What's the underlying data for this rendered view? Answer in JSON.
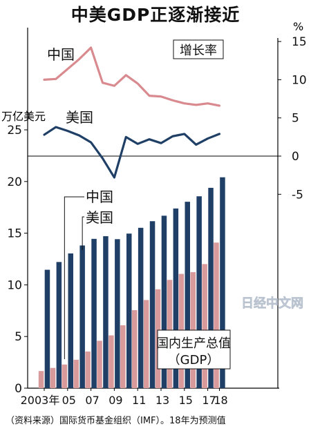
{
  "title": "中美GDP正逐渐接近",
  "source": "（资料来源）国际货币基金组织（IMF）。18年为预测值",
  "watermark": "日经中文网",
  "chart_data": [
    {
      "type": "line",
      "label": "增长率",
      "unit": "%",
      "x": [
        2003,
        2004,
        2005,
        2006,
        2007,
        2008,
        2009,
        2010,
        2011,
        2012,
        2013,
        2014,
        2015,
        2016,
        2017,
        2018
      ],
      "series": [
        {
          "name": "中国",
          "color": "#d98a8e",
          "values": [
            10.0,
            10.1,
            11.4,
            12.7,
            14.2,
            9.6,
            9.2,
            10.6,
            9.5,
            7.9,
            7.8,
            7.3,
            6.9,
            6.7,
            6.9,
            6.6
          ]
        },
        {
          "name": "美国",
          "color": "#1f3f66",
          "values": [
            2.8,
            3.8,
            3.3,
            2.7,
            1.8,
            -0.3,
            -2.8,
            2.5,
            1.6,
            2.2,
            1.7,
            2.6,
            2.9,
            1.5,
            2.3,
            2.9
          ]
        }
      ],
      "ylim": [
        -5,
        15
      ],
      "yticks": [
        "15",
        "10",
        "5",
        "0",
        "-5"
      ]
    },
    {
      "type": "bar",
      "label": "国内生产总值（GDP）",
      "label_lines": [
        "国内生产总值",
        "（GDP）"
      ],
      "unit": "万亿美元",
      "categories": [
        2003,
        2004,
        2005,
        2006,
        2007,
        2008,
        2009,
        2010,
        2011,
        2012,
        2013,
        2014,
        2015,
        2016,
        2017,
        2018
      ],
      "xticks": [
        "2003年",
        "05",
        "07",
        "09",
        "11",
        "13",
        "15",
        "17",
        "18"
      ],
      "series": [
        {
          "name": "中国",
          "color": "#d99a9c",
          "values": [
            1.66,
            1.96,
            2.29,
            2.75,
            3.55,
            4.59,
            5.11,
            6.09,
            7.55,
            8.53,
            9.57,
            10.48,
            11.06,
            11.23,
            12.01,
            14.09
          ]
        },
        {
          "name": "美国",
          "color": "#1f3f66",
          "values": [
            11.46,
            12.21,
            13.04,
            13.81,
            14.45,
            14.71,
            14.42,
            14.96,
            15.52,
            16.16,
            16.69,
            17.39,
            18.04,
            18.57,
            19.39,
            20.41
          ]
        }
      ],
      "ylim": [
        0,
        25
      ],
      "yticks": [
        "0",
        "5",
        "10",
        "15",
        "20",
        "25"
      ]
    }
  ]
}
